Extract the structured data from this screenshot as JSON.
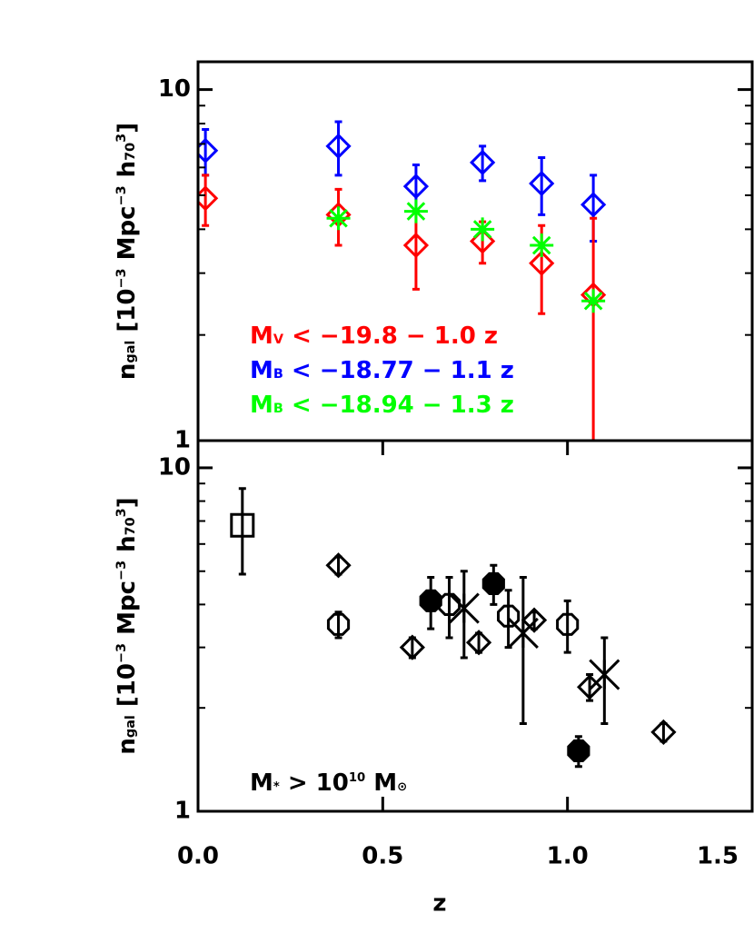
{
  "chart_data": [
    {
      "type": "scatter",
      "ylabel": [
        {
          "text": "n",
          "shift": "none"
        },
        {
          "text": "gal",
          "shift": "sub"
        },
        {
          "text": " [10",
          "shift": "none"
        },
        {
          "text": "−3",
          "shift": "sup"
        },
        {
          "text": " Mpc",
          "shift": "none"
        },
        {
          "text": "−3",
          "shift": "sup"
        },
        {
          "text": " h",
          "shift": "none"
        },
        {
          "text": "70",
          "shift": "sub"
        },
        {
          "text": "3",
          "shift": "sup"
        },
        {
          "text": "]",
          "shift": "none"
        }
      ],
      "xlim": [
        0,
        1.5
      ],
      "ylim": [
        1,
        12
      ],
      "log_y": true,
      "yticks": [
        1,
        10
      ],
      "yminorticks": [
        2,
        3,
        4,
        5,
        6,
        7,
        8,
        9
      ],
      "series": [
        {
          "marker": "diamond",
          "color": "#0000ff",
          "x": [
            0.02,
            0.38,
            0.59,
            0.77,
            0.93,
            1.07
          ],
          "values": [
            6.7,
            6.9,
            5.3,
            6.2,
            5.4,
            4.7
          ],
          "yerr": [
            1.0,
            1.2,
            0.8,
            0.7,
            1.0,
            1.0
          ]
        },
        {
          "marker": "diamond",
          "color": "#ff0000",
          "x": [
            0.02,
            0.38,
            0.59,
            0.77,
            0.93,
            1.07
          ],
          "values": [
            4.9,
            4.4,
            3.6,
            3.7,
            3.2,
            2.6
          ],
          "yerr": [
            0.8,
            0.8,
            0.9,
            0.5,
            0.9,
            1.7
          ]
        },
        {
          "marker": "asterisk",
          "color": "#00ff00",
          "x": [
            0.38,
            0.59,
            0.77,
            0.93,
            1.07
          ],
          "values": [
            4.3,
            4.5,
            4.0,
            3.6,
            2.5
          ]
        }
      ],
      "legend": [
        {
          "color": "#ff0000",
          "parts": [
            {
              "text": "M",
              "shift": "none"
            },
            {
              "text": "V",
              "shift": "sub"
            },
            {
              "text": " < −19.8 − 1.0 z",
              "shift": "none"
            }
          ]
        },
        {
          "color": "#0000ff",
          "parts": [
            {
              "text": "M",
              "shift": "none"
            },
            {
              "text": "B",
              "shift": "sub"
            },
            {
              "text": " < −18.77 − 1.1 z",
              "shift": "none"
            }
          ]
        },
        {
          "color": "#00ff00",
          "parts": [
            {
              "text": "M",
              "shift": "none"
            },
            {
              "text": "B",
              "shift": "sub"
            },
            {
              "text": " < −18.94 − 1.3 z",
              "shift": "none"
            }
          ]
        }
      ]
    },
    {
      "type": "scatter",
      "ylabel": [
        {
          "text": "n",
          "shift": "none"
        },
        {
          "text": "gal",
          "shift": "sub"
        },
        {
          "text": " [10",
          "shift": "none"
        },
        {
          "text": "−3",
          "shift": "sup"
        },
        {
          "text": " Mpc",
          "shift": "none"
        },
        {
          "text": "−3",
          "shift": "sup"
        },
        {
          "text": " h",
          "shift": "none"
        },
        {
          "text": "70",
          "shift": "sub"
        },
        {
          "text": "3",
          "shift": "sup"
        },
        {
          "text": "]",
          "shift": "none"
        }
      ],
      "xlabel": "z",
      "xlim": [
        0,
        1.5
      ],
      "xticks": [
        {
          "value": 0,
          "label": "0.0"
        },
        0.5,
        {
          "value": 1,
          "label": "1.0"
        },
        1.5
      ],
      "ylim": [
        1,
        12
      ],
      "log_y": true,
      "yticks": [
        1,
        10
      ],
      "yminorticks": [
        2,
        3,
        4,
        5,
        6,
        7,
        8,
        9
      ],
      "annotation": [
        {
          "text": "M",
          "shift": "none"
        },
        {
          "text": "*",
          "shift": "sub"
        },
        {
          "text": " > 10",
          "shift": "none"
        },
        {
          "text": "10",
          "shift": "sup"
        },
        {
          "text": " M",
          "shift": "none"
        },
        {
          "text": "⊙",
          "shift": "sub"
        }
      ],
      "series": [
        {
          "marker": "square",
          "color": "#000000",
          "x": [
            0.12
          ],
          "values": [
            6.8
          ],
          "yerr": [
            1.9
          ]
        },
        {
          "marker": "diamond",
          "color": "#000000",
          "x": [
            0.38,
            0.58,
            0.76,
            0.91,
            1.06,
            1.26
          ],
          "values": [
            5.2,
            3.0,
            3.1,
            3.6,
            2.3,
            1.7
          ],
          "yerr": [
            0.3,
            0.2,
            0.2,
            0.2,
            0.2,
            0.1
          ]
        },
        {
          "marker": "hexagon",
          "color": "#000000",
          "x": [
            0.38,
            0.68,
            0.84,
            1.0
          ],
          "values": [
            3.5,
            4.0,
            3.7,
            3.5
          ],
          "yerr": [
            0.3,
            0.8,
            0.7,
            0.6
          ]
        },
        {
          "marker": "hexagon-filled",
          "color": "#000000",
          "x": [
            0.63,
            0.8,
            1.03
          ],
          "values": [
            4.1,
            4.6,
            1.5
          ],
          "yerr": [
            0.7,
            0.6,
            0.15
          ]
        },
        {
          "marker": "x-star",
          "color": "#000000",
          "x": [
            0.72,
            0.88,
            1.1
          ],
          "values": [
            3.9,
            3.3,
            2.5
          ],
          "yerr": [
            1.1,
            1.5,
            0.7
          ]
        }
      ]
    }
  ]
}
